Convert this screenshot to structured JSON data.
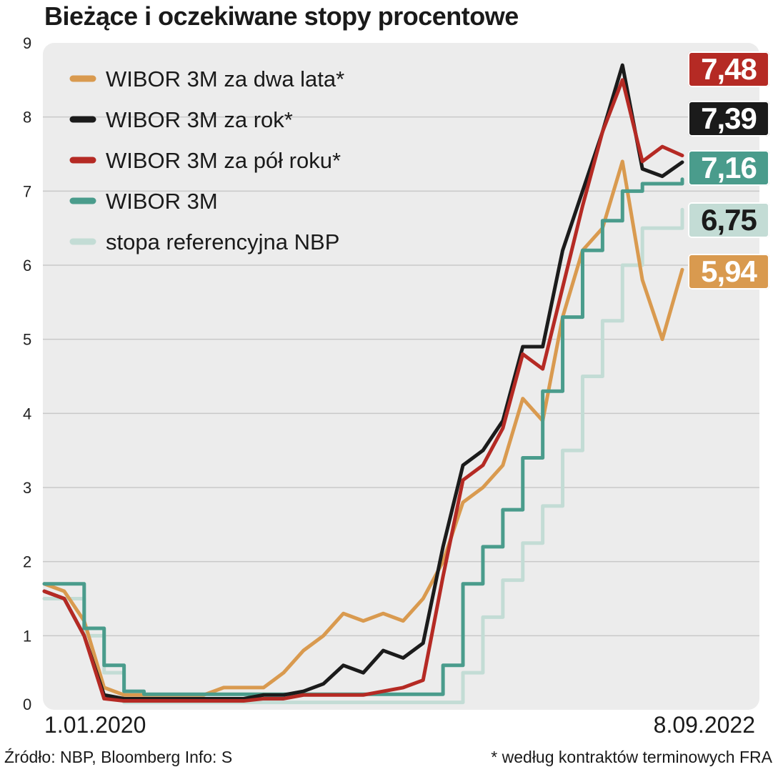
{
  "title": "Bieżące i oczekiwane stopy procentowe",
  "footer": {
    "source": "Źródło: NBP, Bloomberg   Info: S",
    "note": "* według kontraktów terminowych FRA"
  },
  "chart_data": {
    "type": "line",
    "title": "Bieżące i oczekiwane stopy procentowe",
    "x_start_label": "1.01.2020",
    "x_end_label": "8.09.2022",
    "ylim": [
      0,
      9
    ],
    "yticks": [
      "0",
      "1",
      "2",
      "3",
      "4",
      "5",
      "6",
      "7",
      "8",
      "9"
    ],
    "grid": true,
    "legend_position": "top-left",
    "x": [
      "2020-01",
      "2020-02",
      "2020-03",
      "2020-04",
      "2020-05",
      "2020-06",
      "2020-07",
      "2020-08",
      "2020-09",
      "2020-10",
      "2020-11",
      "2020-12",
      "2021-01",
      "2021-02",
      "2021-03",
      "2021-04",
      "2021-05",
      "2021-06",
      "2021-07",
      "2021-08",
      "2021-09",
      "2021-10",
      "2021-11",
      "2021-12",
      "2022-01",
      "2022-02",
      "2022-03",
      "2022-04",
      "2022-05",
      "2022-06",
      "2022-07",
      "2022-08",
      "2022-09"
    ],
    "series": [
      {
        "name": "WIBOR 3M za dwa lata*",
        "color": "#d99a4f",
        "last": "5,94",
        "values": [
          1.7,
          1.6,
          1.2,
          0.3,
          0.2,
          0.2,
          0.2,
          0.2,
          0.2,
          0.3,
          0.3,
          0.3,
          0.5,
          0.8,
          1.0,
          1.3,
          1.2,
          1.3,
          1.2,
          1.5,
          2.0,
          2.8,
          3.0,
          3.3,
          4.2,
          3.9,
          5.3,
          6.2,
          6.5,
          7.4,
          5.8,
          5.0,
          5.94
        ]
      },
      {
        "name": "WIBOR 3M za rok*",
        "color": "#1b1b1b",
        "last": "7,39",
        "values": [
          1.6,
          1.5,
          1.0,
          0.2,
          0.15,
          0.15,
          0.15,
          0.15,
          0.15,
          0.15,
          0.15,
          0.2,
          0.2,
          0.25,
          0.35,
          0.6,
          0.5,
          0.8,
          0.7,
          0.9,
          2.2,
          3.3,
          3.5,
          3.9,
          4.9,
          4.9,
          6.2,
          7.0,
          7.8,
          8.7,
          7.3,
          7.2,
          7.39
        ]
      },
      {
        "name": "WIBOR 3M za pół roku*",
        "color": "#b52a24",
        "last": "7,48",
        "values": [
          1.6,
          1.5,
          1.0,
          0.15,
          0.12,
          0.12,
          0.12,
          0.12,
          0.12,
          0.12,
          0.12,
          0.15,
          0.15,
          0.2,
          0.2,
          0.2,
          0.2,
          0.25,
          0.3,
          0.4,
          1.8,
          3.1,
          3.3,
          3.8,
          4.8,
          4.6,
          5.7,
          6.8,
          7.8,
          8.5,
          7.4,
          7.6,
          7.48
        ]
      },
      {
        "name": "WIBOR 3M",
        "color": "#4a9c8c",
        "last": "7,16",
        "values": [
          1.7,
          1.7,
          1.1,
          0.6,
          0.25,
          0.21,
          0.21,
          0.21,
          0.21,
          0.21,
          0.21,
          0.21,
          0.21,
          0.21,
          0.21,
          0.21,
          0.21,
          0.21,
          0.21,
          0.21,
          0.6,
          1.7,
          2.2,
          2.7,
          3.4,
          4.3,
          5.3,
          6.2,
          6.6,
          7.0,
          7.1,
          7.1,
          7.16
        ]
      },
      {
        "name": "stopa referencyjna NBP",
        "color": "#c3dcd5",
        "last": "6,75",
        "values": [
          1.5,
          1.5,
          1.0,
          0.5,
          0.1,
          0.1,
          0.1,
          0.1,
          0.1,
          0.1,
          0.1,
          0.1,
          0.1,
          0.1,
          0.1,
          0.1,
          0.1,
          0.1,
          0.1,
          0.1,
          0.1,
          0.5,
          1.25,
          1.75,
          2.25,
          2.75,
          3.5,
          4.5,
          5.25,
          6.0,
          6.5,
          6.5,
          6.75
        ]
      }
    ],
    "badge_order": [
      "WIBOR 3M za pół roku*",
      "WIBOR 3M za rok*",
      "WIBOR 3M",
      "stopa referencyjna NBP",
      "WIBOR 3M za dwa lata*"
    ]
  }
}
